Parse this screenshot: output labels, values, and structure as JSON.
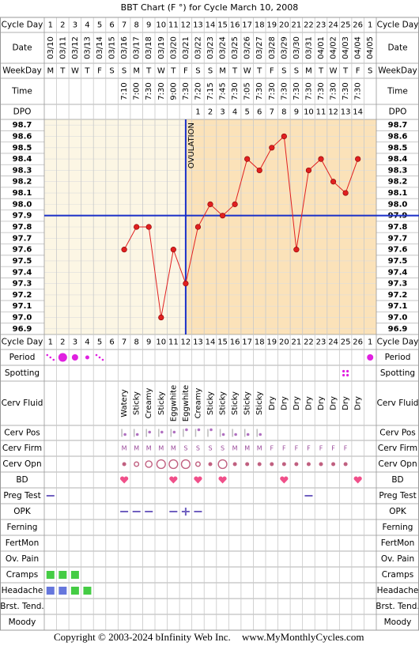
{
  "header": {
    "title": "BBT Chart (F °) for Cycle March 10, 2008"
  },
  "chart_data": {
    "type": "line",
    "categories": [
      1,
      2,
      3,
      4,
      5,
      6,
      7,
      8,
      9,
      10,
      11,
      12,
      13,
      14,
      15,
      16,
      17,
      18,
      19,
      20,
      21,
      22,
      23,
      24,
      25,
      26,
      1
    ],
    "values": [
      null,
      null,
      null,
      null,
      null,
      null,
      97.6,
      97.8,
      97.8,
      97.0,
      97.6,
      97.3,
      97.8,
      98.0,
      97.9,
      98.0,
      98.4,
      98.3,
      98.5,
      98.6,
      97.6,
      98.3,
      98.4,
      98.2,
      98.1,
      98.4,
      null
    ],
    "color": "#e02020",
    "ylim": [
      96.85,
      98.75
    ],
    "yticks": [
      98.7,
      98.6,
      98.5,
      98.4,
      98.3,
      98.2,
      98.1,
      {
        "value": 98,
        "label": "98.0"
      },
      97.9,
      97.8,
      97.7,
      97.6,
      97.5,
      97.4,
      97.3,
      97.2,
      97.1,
      {
        "value": 97,
        "label": "97.0"
      },
      96.9
    ],
    "grid": true,
    "coverline": 97.9,
    "ovulation_day": 12,
    "ovulation_label": "OVULATION",
    "line_color": "#1a2fc8"
  },
  "table": {
    "top_rows": [
      "Cycle Day",
      "Date",
      "WeekDay",
      "Time",
      "DPO"
    ],
    "bottom_rows": [
      "Cycle Day",
      "Period",
      "Spotting",
      "Cerv Fluid",
      "Cerv Pos",
      "Cerv Firm",
      "Cerv Opn",
      "BD",
      "Preg Test",
      "OPK",
      "Ferning",
      "FertMon",
      "Ov. Pain",
      "Cramps",
      "Headache",
      "Brst. Tend.",
      "Moody"
    ],
    "dates": [
      "03/10",
      "03/11",
      "03/12",
      "03/13",
      "03/14",
      "03/15",
      "03/16",
      "03/17",
      "03/18",
      "03/19",
      "03/20",
      "03/21",
      "03/22",
      "03/23",
      "03/24",
      "03/25",
      "03/26",
      "03/27",
      "03/28",
      "03/29",
      "03/30",
      "03/31",
      "04/01",
      "04/02",
      "04/03",
      "04/04",
      "04/05"
    ],
    "weekdays": [
      "M",
      "T",
      "W",
      "T",
      "F",
      "S",
      "S",
      "M",
      "T",
      "W",
      "T",
      "F",
      "S",
      "S",
      "M",
      "T",
      "W",
      "T",
      "F",
      "S",
      "S",
      "M",
      "T",
      "W",
      "T",
      "F",
      "S"
    ],
    "times": [
      null,
      null,
      null,
      null,
      null,
      null,
      "7:10",
      "7:00",
      "7:30",
      "7:30",
      "9:00",
      "7:30",
      "7:20",
      "7:15",
      "7:45",
      "7:30",
      "7:05",
      "7:30",
      "7:30",
      "7:30",
      "7:30",
      "7:30",
      "7:30",
      "7:30",
      "7:30",
      "7:30",
      null
    ],
    "dpo": [
      null,
      null,
      null,
      null,
      null,
      null,
      null,
      null,
      null,
      null,
      null,
      null,
      1,
      2,
      3,
      4,
      5,
      6,
      7,
      8,
      9,
      10,
      11,
      12,
      13,
      14,
      null
    ],
    "cerv_fluid": [
      null,
      null,
      null,
      null,
      null,
      null,
      "Watery",
      "Sticky",
      "Creamy",
      "Sticky",
      "Eggwhite",
      "Eggwhite",
      "Creamy",
      "Sticky",
      "Sticky",
      "Sticky",
      "Sticky",
      "Sticky",
      "Dry",
      "Dry",
      "Dry",
      "Dry",
      "Dry",
      "Dry",
      "Dry",
      "Dry",
      null
    ],
    "cerv_firm": [
      null,
      null,
      null,
      null,
      null,
      null,
      "M",
      "M",
      "M",
      "M",
      "M",
      "S",
      "S",
      "S",
      "S",
      "M",
      "M",
      "M",
      "F",
      "F",
      "F",
      "F",
      "F",
      "F",
      "F",
      null,
      null
    ]
  },
  "footer": {
    "copyright": "Copyright © 2003-2024 bInfinity Web Inc.",
    "site": "www.MyMonthlyCycles.com"
  }
}
